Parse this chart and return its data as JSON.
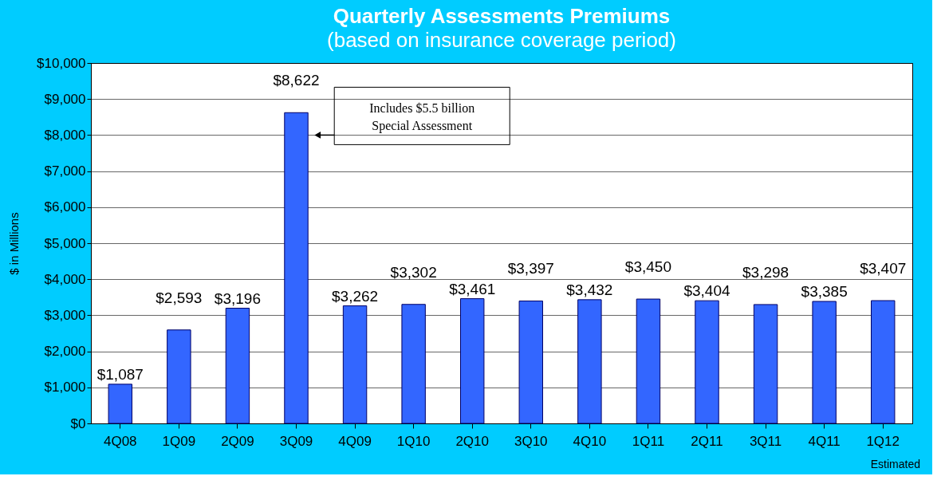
{
  "chart_data": {
    "type": "bar",
    "title": "Quarterly Assessments Premiums",
    "subtitle": "(based on insurance coverage period)",
    "ylabel": "$ in Millions",
    "categories": [
      "4Q08",
      "1Q09",
      "2Q09",
      "3Q09",
      "4Q09",
      "1Q10",
      "2Q10",
      "3Q10",
      "4Q10",
      "1Q11",
      "2Q11",
      "3Q11",
      "4Q11",
      "1Q12"
    ],
    "values": [
      1087,
      2593,
      3196,
      8622,
      3262,
      3302,
      3461,
      3397,
      3432,
      3450,
      3404,
      3298,
      3385,
      3407
    ],
    "value_labels": [
      "$1,087",
      "$2,593",
      "$3,196",
      "$8,622",
      "$3,262",
      "$3,302",
      "$3,461",
      "$3,397",
      "$3,432",
      "$3,450",
      "$3,404",
      "$3,298",
      "$3,385",
      "$3,407"
    ],
    "color": "#3366ff",
    "ylim": [
      0,
      10000
    ],
    "yticks": [
      {
        "value": 0,
        "label": "$0"
      },
      {
        "value": 1000,
        "label": "$1,000"
      },
      {
        "value": 2000,
        "label": "$2,000"
      },
      {
        "value": 3000,
        "label": "$3,000"
      },
      {
        "value": 4000,
        "label": "$4,000"
      },
      {
        "value": 5000,
        "label": "$5,000"
      },
      {
        "value": 6000,
        "label": "$6,000"
      },
      {
        "value": 7000,
        "label": "$7,000"
      },
      {
        "value": 8000,
        "label": "$8,000"
      },
      {
        "value": 9000,
        "label": "$9,000"
      },
      {
        "value": 10000,
        "label": "$10,000"
      }
    ],
    "grid": "y",
    "annotations": [
      "Includes $5.5 billion Special Assessment",
      "Estimated"
    ]
  }
}
